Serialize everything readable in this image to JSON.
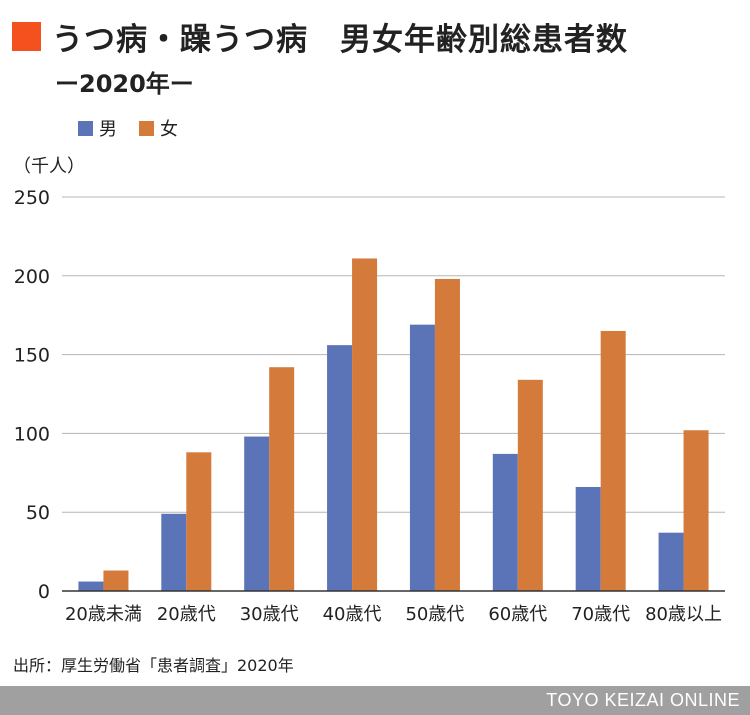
{
  "title": "うつ病・躁うつ病　男女年齢別総患者数",
  "subtitle": "ー2020年ー",
  "unit_label": "（千人）",
  "source": "出所：厚生労働省「患者調査」2020年",
  "brand": "TOYO KEIZAI ONLINE",
  "colors": {
    "title_marker": "#f4511e",
    "male": "#5b74b8",
    "female": "#d47a3a",
    "grid": "#b5b5b5",
    "axis": "#333333",
    "footer": "#a0a0a0"
  },
  "chart_data": {
    "type": "bar",
    "title": "うつ病・躁うつ病　男女年齢別総患者数",
    "subtitle": "ー2020年ー",
    "categories": [
      "20歳未満",
      "20歳代",
      "30歳代",
      "40歳代",
      "50歳代",
      "60歳代",
      "70歳代",
      "80歳以上"
    ],
    "series": [
      {
        "name": "男",
        "values": [
          6,
          49,
          98,
          156,
          169,
          87,
          66,
          37
        ]
      },
      {
        "name": "女",
        "values": [
          13,
          88,
          142,
          211,
          198,
          134,
          165,
          102
        ]
      }
    ],
    "xlabel": "",
    "ylabel": "（千人）",
    "ylim": [
      0,
      250
    ],
    "yticks": [
      0,
      50,
      100,
      150,
      200,
      250
    ],
    "grid": true,
    "legend": "top-left"
  }
}
